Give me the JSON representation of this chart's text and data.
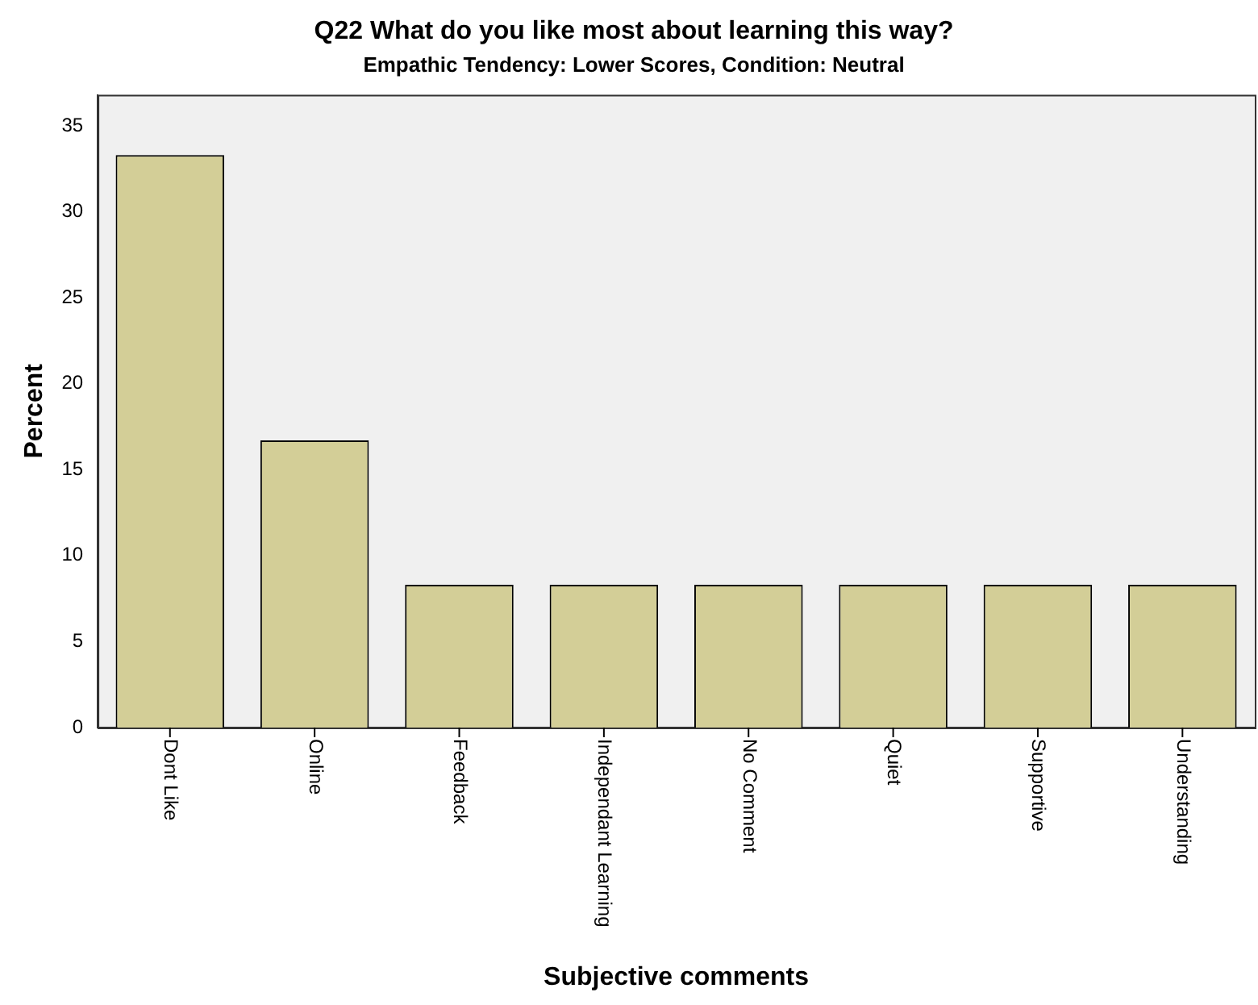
{
  "chart_data": {
    "type": "bar",
    "title": "Q22 What do you like most about learning this way?",
    "subtitle": "Empathic Tendency: Lower Scores, Condition: Neutral",
    "xlabel": "Subjective comments",
    "ylabel": "Percent",
    "categories": [
      "Dont Like",
      "Online",
      "Feedback",
      "Independant Learning",
      "No Comment",
      "Quiet",
      "Supportive",
      "Understanding"
    ],
    "values": [
      33.3,
      16.7,
      8.3,
      8.3,
      8.3,
      8.3,
      8.3,
      8.3
    ],
    "color": "#d3ce97",
    "ylim": [
      0,
      36.8
    ],
    "yticks": [
      0,
      5,
      10,
      15,
      20,
      25,
      30,
      35
    ],
    "grid": false,
    "legend": false
  }
}
